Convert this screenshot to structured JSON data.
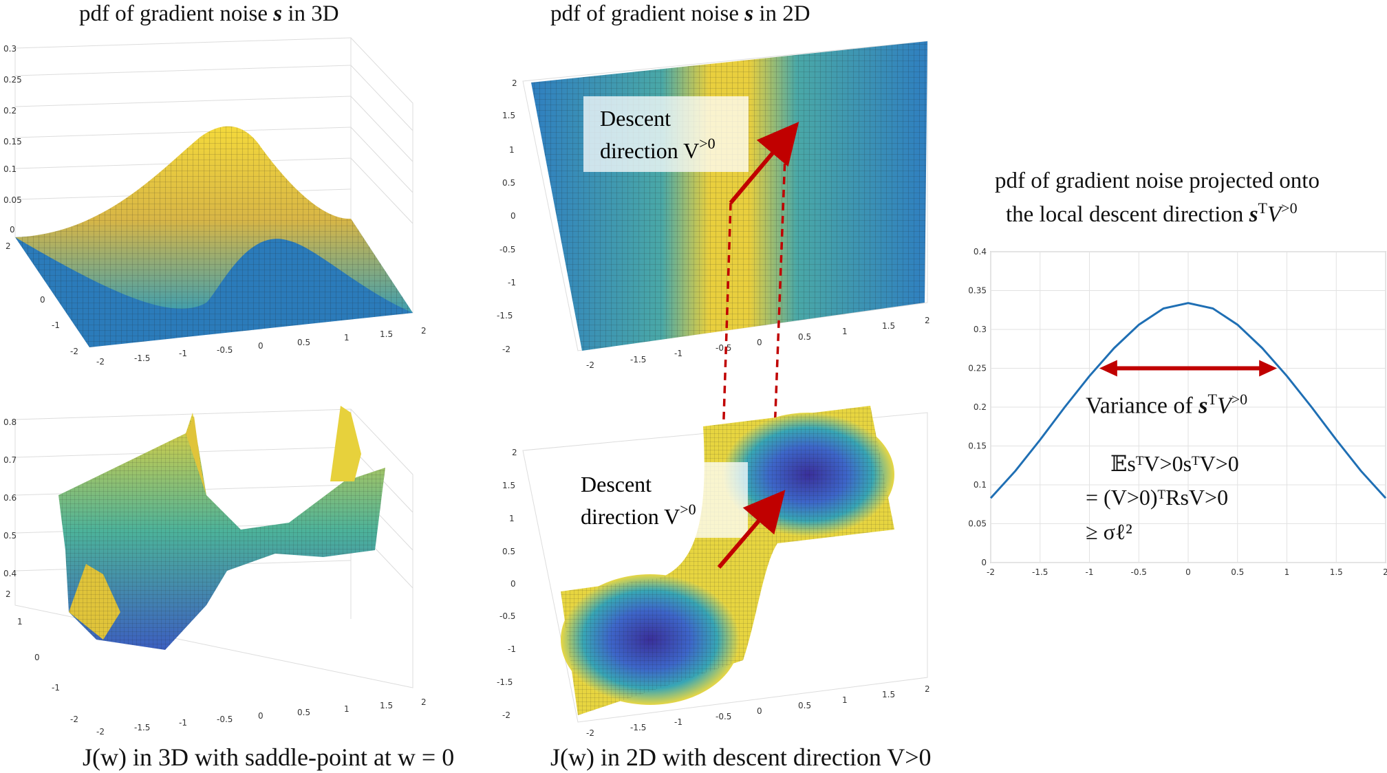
{
  "titles": {
    "top_left_prefix": "pdf of gradient noise ",
    "top_left_var": "s",
    "top_left_suffix": " in 3D",
    "top_mid_prefix": "pdf of gradient noise ",
    "top_mid_var": "s",
    "top_mid_suffix": " in 2D",
    "right_line1": "pdf of gradient noise projected onto",
    "right_line2_prefix": "the local descent direction ",
    "right_line2_var": "s",
    "right_line2_sup": "T",
    "right_line2_v": "V",
    "right_line2_v_sup": ">0"
  },
  "captions": {
    "bottom_left": "J(w) in 3D with saddle-point at w = 0",
    "bottom_mid": "J(w) in 2D with descent direction V>0"
  },
  "annotations": {
    "descent_top_line1": "Descent",
    "descent_top_line2": "direction V",
    "descent_top_sup": ">0",
    "descent_bottom_line1": "Descent",
    "descent_bottom_line2": "direction V",
    "descent_bottom_sup": ">0",
    "variance_label": "Variance of ",
    "variance_var": "s",
    "variance_sup": "T",
    "variance_v": "V",
    "variance_v_sup": ">0",
    "eq_line1": "𝔼sᵀV>0sᵀV>0",
    "eq_line2": "= (V>0)ᵀRsV>0",
    "eq_line3": "≥ σℓ²"
  },
  "ticks": {
    "surf_z_top": [
      "0.3",
      "0.25",
      "0.2",
      "0.15",
      "0.1",
      "0.05",
      "0"
    ],
    "surf_z_bottom": [
      "0.8",
      "0.7",
      "0.6",
      "0.5",
      "0.4"
    ],
    "surf_y": [
      "2",
      "1",
      "0",
      "-1",
      "-2"
    ],
    "surf_x": [
      "-2",
      "-1.5",
      "-1",
      "-0.5",
      "0",
      "0.5",
      "1",
      "1.5",
      "2"
    ],
    "plane_y": [
      "2",
      "1.5",
      "1",
      "0.5",
      "0",
      "-0.5",
      "-1",
      "-1.5",
      "-2"
    ],
    "plane_x": [
      "-2",
      "-1.5",
      "-1",
      "-0.5",
      "0",
      "0.5",
      "1",
      "1.5",
      "2"
    ]
  },
  "colors": {
    "surface_blue": "#2b7bba",
    "surface_yellow": "#f2d93a",
    "arrow_red": "#c00000",
    "curve_blue": "#1f6fb4"
  },
  "chart_data": {
    "type": "line",
    "title": "pdf of gradient noise projected onto the local descent direction sᵀV>0",
    "xlabel": "",
    "ylabel": "",
    "xlim": [
      -2,
      2
    ],
    "ylim": [
      0,
      0.4
    ],
    "xticks": [
      "-2",
      "-1.5",
      "-1",
      "-0.5",
      "0",
      "0.5",
      "1",
      "1.5",
      "2"
    ],
    "yticks": [
      "0",
      "0.05",
      "0.1",
      "0.15",
      "0.2",
      "0.25",
      "0.3",
      "0.35",
      "0.4"
    ],
    "grid": true,
    "series": [
      {
        "values_x": [
          -2,
          -1.75,
          -1.5,
          -1.25,
          -1,
          -0.75,
          -0.5,
          -0.25,
          0,
          0.25,
          0.5,
          0.75,
          1,
          1.25,
          1.5,
          1.75,
          2
        ],
        "values_y": [
          0.083,
          0.118,
          0.158,
          0.2,
          0.24,
          0.276,
          0.306,
          0.327,
          0.334,
          0.327,
          0.306,
          0.276,
          0.24,
          0.2,
          0.158,
          0.118,
          0.083
        ]
      }
    ],
    "variance_arrow_x": [
      -0.9,
      0.9
    ],
    "variance_arrow_y": 0.25
  }
}
